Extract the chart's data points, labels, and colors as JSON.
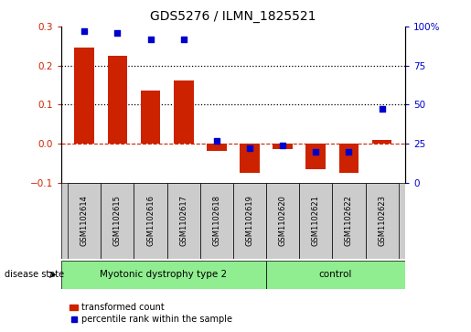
{
  "title": "GDS5276 / ILMN_1825521",
  "samples": [
    "GSM1102614",
    "GSM1102615",
    "GSM1102616",
    "GSM1102617",
    "GSM1102618",
    "GSM1102619",
    "GSM1102620",
    "GSM1102621",
    "GSM1102622",
    "GSM1102623"
  ],
  "red_values": [
    0.245,
    0.225,
    0.135,
    0.162,
    -0.018,
    -0.075,
    -0.015,
    -0.065,
    -0.075,
    0.01
  ],
  "blue_values": [
    97,
    96,
    92,
    92,
    27,
    22,
    24,
    20,
    20,
    47
  ],
  "ylim_left": [
    -0.1,
    0.3
  ],
  "ylim_right": [
    0,
    100
  ],
  "yticks_left": [
    -0.1,
    0.0,
    0.1,
    0.2,
    0.3
  ],
  "yticks_right": [
    0,
    25,
    50,
    75,
    100
  ],
  "ytick_labels_right": [
    "0",
    "25",
    "50",
    "75",
    "100%"
  ],
  "group1_label": "Myotonic dystrophy type 2",
  "group2_label": "control",
  "group_color": "#90EE90",
  "disease_state_label": "disease state",
  "group_separator_idx": 5.5,
  "bar_color": "#CC2200",
  "point_color": "#0000CC",
  "hline_color": "#CC2200",
  "dotline_color": "#000000",
  "legend_red_label": "transformed count",
  "legend_blue_label": "percentile rank within the sample",
  "bar_width": 0.6,
  "tick_label_box_color": "#CCCCCC",
  "n_disease": 6,
  "n_control": 4
}
